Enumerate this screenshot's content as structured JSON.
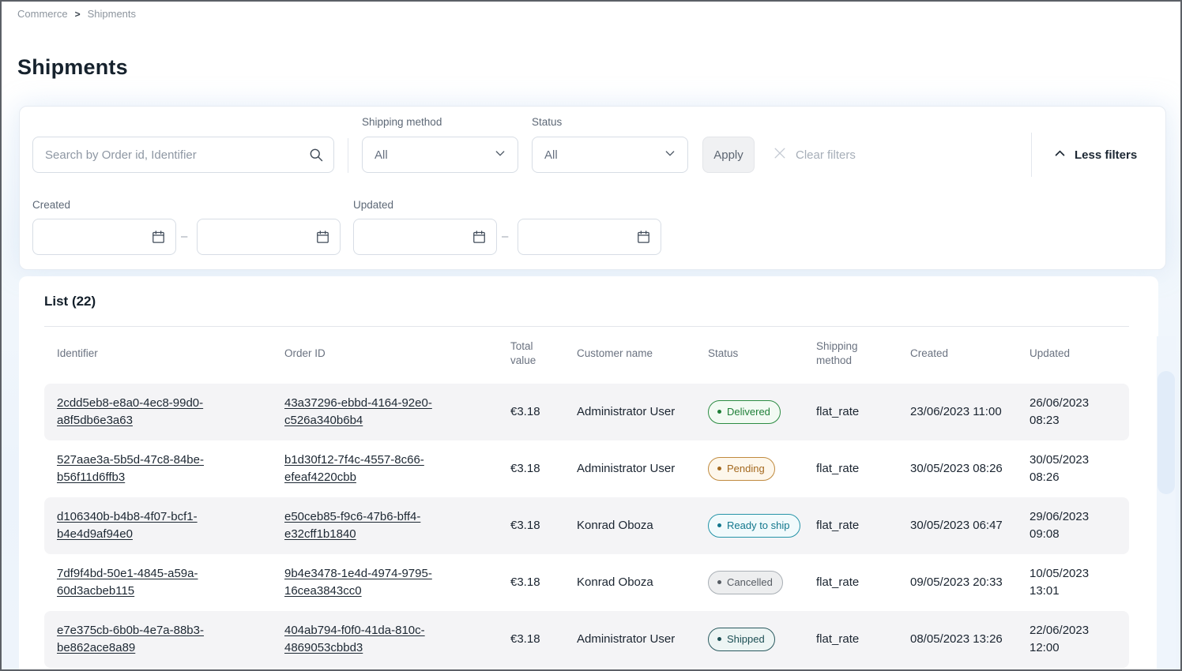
{
  "breadcrumb": {
    "items": [
      "Commerce",
      "Shipments"
    ],
    "separator": ">"
  },
  "page_title": "Shipments",
  "filters": {
    "search_placeholder": "Search by Order id, Identifier",
    "shipping_method": {
      "label": "Shipping method",
      "value": "All"
    },
    "status": {
      "label": "Status",
      "value": "All"
    },
    "apply_label": "Apply",
    "clear_label": "Clear filters",
    "less_filters_label": "Less filters",
    "created": {
      "label": "Created",
      "from": "",
      "to": ""
    },
    "updated": {
      "label": "Updated",
      "from": "",
      "to": ""
    },
    "range_separator": "–"
  },
  "list": {
    "title": "List (22)",
    "columns": [
      "Identifier",
      "Order ID",
      "Total value",
      "Customer name",
      "Status",
      "Shipping method",
      "Created",
      "Updated"
    ],
    "rows": [
      {
        "identifier": "2cdd5eb8-e8a0-4ec8-99d0-a8f5db6e3a63",
        "order_id": "43a37296-ebbd-4164-92e0-c526a340b6b4",
        "total": "€3.18",
        "customer": "Administrator User",
        "status": "Delivered",
        "status_variant": "delivered",
        "shipping": "flat_rate",
        "created": "23/06/2023 11:00",
        "updated": "26/06/2023 08:23"
      },
      {
        "identifier": "527aae3a-5b5d-47c8-84be-b56f11d6ffb3",
        "order_id": "b1d30f12-7f4c-4557-8c66-efeaf4220cbb",
        "total": "€3.18",
        "customer": "Administrator User",
        "status": "Pending",
        "status_variant": "pending",
        "shipping": "flat_rate",
        "created": "30/05/2023 08:26",
        "updated": "30/05/2023 08:26"
      },
      {
        "identifier": "d106340b-b4b8-4f07-bcf1-b4e4d9af94e0",
        "order_id": "e50ceb85-f9c6-47b6-bff4-e32cff1b1840",
        "total": "€3.18",
        "customer": "Konrad Oboza",
        "status": "Ready to ship",
        "status_variant": "ready_to_ship",
        "shipping": "flat_rate",
        "created": "30/05/2023 06:47",
        "updated": "29/06/2023 09:08"
      },
      {
        "identifier": "7df9f4bd-50e1-4845-a59a-60d3acbeb115",
        "order_id": "9b4e3478-1e4d-4974-9795-16cea3843cc0",
        "total": "€3.18",
        "customer": "Konrad Oboza",
        "status": "Cancelled",
        "status_variant": "cancelled",
        "shipping": "flat_rate",
        "created": "09/05/2023 20:33",
        "updated": "10/05/2023 13:01"
      },
      {
        "identifier": "e7e375cb-6b0b-4e7a-88b3-be862ace8a89",
        "order_id": "404ab794-f0f0-41da-810c-4869053cbbd3",
        "total": "€3.18",
        "customer": "Administrator User",
        "status": "Shipped",
        "status_variant": "shipped",
        "shipping": "flat_rate",
        "created": "08/05/2023 13:26",
        "updated": "22/06/2023 12:00"
      }
    ]
  },
  "colors": {
    "title_text": "#16222d",
    "status": {
      "delivered": {
        "fg": "#1e7f37",
        "bg": "#f2faf3",
        "border": "#2c8c43"
      },
      "pending": {
        "fg": "#a4691f",
        "bg": "#fdf7ec",
        "border": "#c08a3e"
      },
      "ready_to_ship": {
        "fg": "#12778d",
        "bg": "#f1fafc",
        "border": "#2594a8"
      },
      "cancelled": {
        "fg": "#565c63",
        "bg": "#edeeef",
        "border": "#a9afb5"
      },
      "shipped": {
        "fg": "#1d4f54",
        "bg": "#edf5f4",
        "border": "#2a5a5f"
      }
    }
  }
}
